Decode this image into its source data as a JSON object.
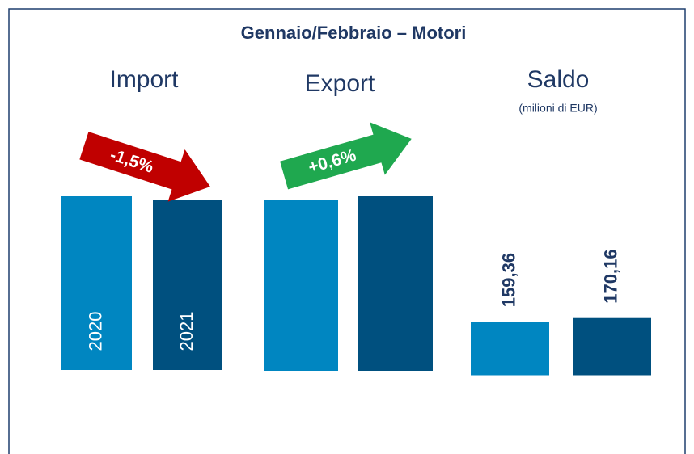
{
  "chart_data": {
    "type": "bar",
    "title": "Gennaio/Febbraio – Motori",
    "years": [
      "2020",
      "2021"
    ],
    "colors": [
      "#0086c1",
      "#00507f"
    ],
    "groups": [
      {
        "name": "Import",
        "change": "-1,5%",
        "change_color": "#c00000"
      },
      {
        "name": "Export",
        "change": "+0,6%",
        "change_color": "#1fa84f"
      },
      {
        "name": "Saldo",
        "subtitle": "(milioni di EUR)",
        "values": [
          159.36,
          170.16
        ],
        "value_labels": [
          "159,36",
          "170,16"
        ]
      }
    ]
  }
}
